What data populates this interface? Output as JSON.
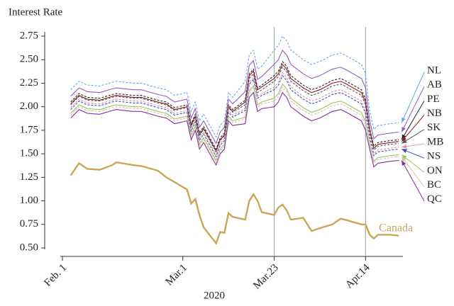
{
  "chart_data": {
    "type": "line",
    "y_label": "Interest Rate",
    "x_label": "2020",
    "x": [
      "2020-02-03",
      "2020-02-05",
      "2020-02-07",
      "2020-02-10",
      "2020-02-13",
      "2020-02-14",
      "2020-02-18",
      "2020-02-20",
      "2020-02-24",
      "2020-02-26",
      "2020-02-28",
      "2020-03-02",
      "2020-03-03",
      "2020-03-04",
      "2020-03-05",
      "2020-03-06",
      "2020-03-09",
      "2020-03-10",
      "2020-03-11",
      "2020-03-12",
      "2020-03-13",
      "2020-03-16",
      "2020-03-17",
      "2020-03-18",
      "2020-03-19",
      "2020-03-20",
      "2020-03-23",
      "2020-03-24",
      "2020-03-25",
      "2020-03-26",
      "2020-03-27",
      "2020-03-30",
      "2020-04-01",
      "2020-04-03",
      "2020-04-06",
      "2020-04-08",
      "2020-04-09",
      "2020-04-13",
      "2020-04-14",
      "2020-04-15",
      "2020-04-16",
      "2020-04-17",
      "2020-04-20",
      "2020-04-22"
    ],
    "xlim": [
      "2020-02-01",
      "2020-04-23"
    ],
    "xticks": [
      {
        "value": "2020-02-01",
        "label": "Feb. 1"
      },
      {
        "value": "2020-03-01",
        "label": "Mar.1"
      },
      {
        "value": "2020-03-23",
        "label": "Mar.23"
      },
      {
        "value": "2020-04-14",
        "label": "Apr.14"
      }
    ],
    "vlines": [
      "2020-03-23",
      "2020-04-14"
    ],
    "ylim": [
      0.5,
      2.75
    ],
    "yticks": [
      {
        "value": 0.5,
        "label": "0.50"
      },
      0.75,
      {
        "value": 1,
        "label": "1.00"
      },
      1.25,
      {
        "value": 1.5,
        "label": "1.50"
      },
      1.75,
      {
        "value": 2,
        "label": "2.00"
      },
      2.25,
      {
        "value": 2.5,
        "label": "2.50"
      },
      2.75
    ],
    "series": [
      {
        "name": "NL",
        "color": "#6fa8dc",
        "dashed": true,
        "values": [
          2.18,
          2.27,
          2.23,
          2.22,
          2.26,
          2.27,
          2.25,
          2.25,
          2.2,
          2.18,
          2.12,
          2.15,
          1.95,
          2.05,
          1.85,
          1.92,
          1.68,
          1.8,
          1.85,
          2.15,
          2.1,
          2.27,
          2.55,
          2.6,
          2.4,
          2.43,
          2.6,
          2.65,
          2.75,
          2.7,
          2.6,
          2.5,
          2.45,
          2.48,
          2.55,
          2.57,
          2.55,
          2.45,
          2.35,
          1.95,
          1.76,
          1.8,
          1.82,
          1.83
        ]
      },
      {
        "name": "AB",
        "color": "#8e5fc0",
        "dashed": false,
        "values": [
          2.11,
          2.2,
          2.16,
          2.15,
          2.19,
          2.2,
          2.18,
          2.18,
          2.13,
          2.11,
          2.05,
          2.08,
          1.88,
          1.98,
          1.78,
          1.85,
          1.61,
          1.73,
          1.78,
          2.08,
          2.03,
          2.16,
          2.44,
          2.49,
          2.29,
          2.32,
          2.45,
          2.5,
          2.6,
          2.55,
          2.45,
          2.35,
          2.3,
          2.33,
          2.4,
          2.42,
          2.4,
          2.3,
          2.2,
          1.85,
          1.66,
          1.7,
          1.72,
          1.73
        ]
      },
      {
        "name": "PE",
        "color": "#222222",
        "dashed": true,
        "values": [
          2.05,
          2.14,
          2.1,
          2.09,
          2.13,
          2.14,
          2.12,
          2.12,
          2.07,
          2.05,
          1.99,
          2.02,
          1.82,
          1.92,
          1.72,
          1.79,
          1.55,
          1.67,
          1.72,
          2.02,
          1.97,
          2.07,
          2.35,
          2.4,
          2.2,
          2.23,
          2.33,
          2.38,
          2.48,
          2.43,
          2.33,
          2.23,
          2.18,
          2.21,
          2.28,
          2.3,
          2.28,
          2.18,
          2.08,
          1.77,
          1.58,
          1.62,
          1.64,
          1.65
        ]
      },
      {
        "name": "NB",
        "color": "#8b1a2a",
        "dashed": false,
        "values": [
          2.03,
          2.12,
          2.08,
          2.07,
          2.11,
          2.12,
          2.1,
          2.1,
          2.05,
          2.03,
          1.97,
          2.0,
          1.8,
          1.9,
          1.7,
          1.77,
          1.53,
          1.65,
          1.7,
          2.0,
          1.95,
          2.05,
          2.33,
          2.38,
          2.18,
          2.21,
          2.3,
          2.35,
          2.45,
          2.4,
          2.3,
          2.2,
          2.15,
          2.18,
          2.25,
          2.27,
          2.25,
          2.15,
          2.05,
          1.75,
          1.56,
          1.6,
          1.62,
          1.63
        ]
      },
      {
        "name": "SK",
        "color": "#555555",
        "dashed": true,
        "values": [
          2.02,
          2.11,
          2.07,
          2.06,
          2.1,
          2.11,
          2.09,
          2.09,
          2.04,
          2.02,
          1.96,
          1.99,
          1.79,
          1.89,
          1.69,
          1.76,
          1.52,
          1.64,
          1.69,
          1.99,
          1.94,
          2.02,
          2.3,
          2.35,
          2.15,
          2.18,
          2.27,
          2.32,
          2.42,
          2.37,
          2.27,
          2.17,
          2.12,
          2.15,
          2.22,
          2.24,
          2.22,
          2.12,
          2.02,
          1.73,
          1.54,
          1.58,
          1.6,
          1.61
        ]
      },
      {
        "name": "MB",
        "color": "#e0909f",
        "dashed": true,
        "values": [
          1.99,
          2.08,
          2.04,
          2.03,
          2.07,
          2.08,
          2.06,
          2.06,
          2.01,
          1.99,
          1.93,
          1.96,
          1.76,
          1.86,
          1.66,
          1.73,
          1.49,
          1.61,
          1.66,
          1.96,
          1.91,
          1.98,
          2.26,
          2.31,
          2.11,
          2.14,
          2.21,
          2.26,
          2.36,
          2.31,
          2.21,
          2.11,
          2.06,
          2.09,
          2.16,
          2.18,
          2.16,
          2.06,
          1.96,
          1.69,
          1.5,
          1.54,
          1.56,
          1.57
        ]
      },
      {
        "name": "NS",
        "color": "#2f4fc0",
        "dashed": true,
        "values": [
          1.97,
          2.06,
          2.02,
          2.01,
          2.05,
          2.06,
          2.04,
          2.04,
          1.99,
          1.97,
          1.91,
          1.94,
          1.74,
          1.84,
          1.64,
          1.71,
          1.47,
          1.59,
          1.64,
          1.94,
          1.89,
          1.96,
          2.24,
          2.29,
          2.09,
          2.12,
          2.18,
          2.23,
          2.33,
          2.28,
          2.18,
          2.08,
          2.03,
          2.06,
          2.13,
          2.15,
          2.13,
          2.03,
          1.93,
          1.67,
          1.48,
          1.52,
          1.54,
          1.55
        ]
      },
      {
        "name": "ON",
        "color": "#9fc06a",
        "dashed": false,
        "values": [
          1.93,
          2.02,
          1.98,
          1.97,
          2.01,
          2.02,
          2.0,
          2.0,
          1.95,
          1.93,
          1.87,
          1.9,
          1.7,
          1.8,
          1.6,
          1.67,
          1.43,
          1.55,
          1.6,
          1.9,
          1.85,
          1.89,
          2.17,
          2.22,
          2.02,
          2.05,
          2.09,
          2.14,
          2.24,
          2.19,
          2.09,
          1.99,
          1.94,
          1.97,
          2.04,
          2.06,
          2.04,
          1.94,
          1.84,
          1.61,
          1.42,
          1.46,
          1.48,
          1.49
        ]
      },
      {
        "name": "BC",
        "color": "#d6c49a",
        "dashed": true,
        "values": [
          1.91,
          2.0,
          1.96,
          1.95,
          1.99,
          2.0,
          1.98,
          1.98,
          1.93,
          1.91,
          1.85,
          1.88,
          1.68,
          1.78,
          1.58,
          1.65,
          1.41,
          1.53,
          1.58,
          1.88,
          1.83,
          1.87,
          2.15,
          2.2,
          2.0,
          2.03,
          2.06,
          2.11,
          2.21,
          2.16,
          2.06,
          1.96,
          1.91,
          1.94,
          2.01,
          2.03,
          2.01,
          1.91,
          1.81,
          1.59,
          1.4,
          1.44,
          1.46,
          1.47
        ]
      },
      {
        "name": "QC",
        "color": "#8a2c9c",
        "dashed": false,
        "values": [
          1.88,
          1.97,
          1.93,
          1.92,
          1.96,
          1.97,
          1.95,
          1.95,
          1.9,
          1.88,
          1.82,
          1.85,
          1.65,
          1.75,
          1.55,
          1.62,
          1.38,
          1.5,
          1.55,
          1.85,
          1.8,
          1.82,
          2.1,
          2.15,
          1.95,
          1.98,
          2.0,
          2.05,
          2.15,
          2.1,
          2.0,
          1.9,
          1.85,
          1.88,
          1.95,
          1.97,
          1.95,
          1.85,
          1.75,
          1.55,
          1.36,
          1.4,
          1.42,
          1.43
        ]
      },
      {
        "name": "Canada",
        "color": "#c9a555",
        "dashed": false,
        "thick": true,
        "values": [
          1.27,
          1.4,
          1.34,
          1.33,
          1.38,
          1.41,
          1.38,
          1.37,
          1.32,
          1.25,
          1.2,
          1.12,
          0.97,
          1.02,
          0.85,
          0.72,
          0.55,
          0.67,
          0.66,
          0.87,
          0.83,
          0.8,
          1.0,
          1.07,
          1.0,
          0.88,
          0.85,
          0.93,
          0.96,
          0.9,
          0.8,
          0.82,
          0.68,
          0.71,
          0.75,
          0.81,
          0.8,
          0.75,
          0.75,
          0.64,
          0.6,
          0.64,
          0.64,
          0.63
        ]
      }
    ]
  }
}
